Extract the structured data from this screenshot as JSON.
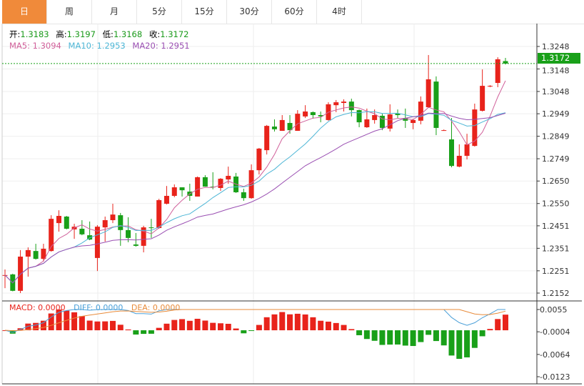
{
  "tabs": [
    {
      "label": "日",
      "active": true
    },
    {
      "label": "周"
    },
    {
      "label": "月"
    },
    {
      "label": "5分"
    },
    {
      "label": "15分"
    },
    {
      "label": "30分"
    },
    {
      "label": "60分"
    },
    {
      "label": "4时"
    }
  ],
  "ohlc_info": {
    "open_label": "开:",
    "open": "1.3183",
    "high_label": "高:",
    "high": "1.3197",
    "low_label": "低:",
    "low": "1.3168",
    "close_label": "收:",
    "close": "1.3172"
  },
  "ma_info": {
    "ma5": "MA5: 1.3094",
    "ma10": "MA10: 1.2953",
    "ma20": "MA20: 1.2951"
  },
  "macd_info": {
    "macd": "MACD: 0.0000",
    "diff": "DIFF: 0.0000",
    "dea": "DEA: 0.0000"
  },
  "colors": {
    "up": "#e8231b",
    "down": "#19a019",
    "ma5": "#d0609a",
    "ma10": "#4db6d6",
    "ma20": "#9a4fb2",
    "diff": "#4a9fd8",
    "dea": "#e88b3a",
    "tab_active": "#f08a3a"
  },
  "current_price_label": "1.3172",
  "chart_data": [
    {
      "type": "candlestick",
      "title": "",
      "ylim": [
        1.2152,
        1.3248
      ],
      "yticks": [
        "1.3248",
        "1.3148",
        "1.3048",
        "1.2949",
        "1.2849",
        "1.2749",
        "1.2650",
        "1.2550",
        "1.2451",
        "1.2351",
        "1.2251",
        "1.2152"
      ],
      "grid": true,
      "moving_averages": [
        5,
        10,
        20
      ],
      "ohlc": [
        [
          1.2229,
          1.2257,
          1.2174,
          1.2232
        ],
        [
          1.2235,
          1.2238,
          1.216,
          1.2162
        ],
        [
          1.2162,
          1.2343,
          1.2152,
          1.2314
        ],
        [
          1.2314,
          1.2355,
          1.2225,
          1.2343
        ],
        [
          1.2339,
          1.2371,
          1.2301,
          1.2304
        ],
        [
          1.2304,
          1.2371,
          1.2292,
          1.2349
        ],
        [
          1.2339,
          1.2498,
          1.2336,
          1.2482
        ],
        [
          1.2463,
          1.252,
          1.2425,
          1.2495
        ],
        [
          1.2492,
          1.2495,
          1.2435,
          1.2438
        ],
        [
          1.2435,
          1.246,
          1.2393,
          1.2447
        ],
        [
          1.2438,
          1.2476,
          1.2409,
          1.2413
        ],
        [
          1.2409,
          1.247,
          1.2387,
          1.239
        ],
        [
          1.2308,
          1.2454,
          1.225,
          1.2447
        ],
        [
          1.2444,
          1.2492,
          1.2381,
          1.2476
        ],
        [
          1.2476,
          1.2549,
          1.2463,
          1.2501
        ],
        [
          1.2498,
          1.2508,
          1.2362,
          1.2432
        ],
        [
          1.2432,
          1.2489,
          1.2378,
          1.2397
        ],
        [
          1.2368,
          1.2419,
          1.2358,
          1.2362
        ],
        [
          1.2362,
          1.2451,
          1.2333,
          1.2444
        ],
        [
          1.2444,
          1.2482,
          1.2397,
          1.2441
        ],
        [
          1.2441,
          1.2571,
          1.2438,
          1.2565
        ],
        [
          1.2549,
          1.2628,
          1.2546,
          1.2584
        ],
        [
          1.2584,
          1.2635,
          1.2578,
          1.2622
        ],
        [
          1.2622,
          1.2622,
          1.2581,
          1.2609
        ],
        [
          1.2603,
          1.2638,
          1.2562,
          1.2584
        ],
        [
          1.2581,
          1.267,
          1.2581,
          1.2667
        ],
        [
          1.2667,
          1.2676,
          1.2625,
          1.2625
        ],
        [
          1.2625,
          1.2689,
          1.2613,
          1.2622
        ],
        [
          1.2619,
          1.2663,
          1.2606,
          1.266
        ],
        [
          1.2657,
          1.2714,
          1.2638,
          1.2673
        ],
        [
          1.267,
          1.2686,
          1.2597,
          1.26
        ],
        [
          1.26,
          1.2616,
          1.2562,
          1.2574
        ],
        [
          1.2574,
          1.2724,
          1.2571,
          1.2698
        ],
        [
          1.2698,
          1.2797,
          1.2679,
          1.2794
        ],
        [
          1.2787,
          1.2899,
          1.2768,
          1.2895
        ],
        [
          1.2892,
          1.2924,
          1.287,
          1.288
        ],
        [
          1.2873,
          1.2943,
          1.2873,
          1.2921
        ],
        [
          1.2908,
          1.2943,
          1.286,
          1.2876
        ],
        [
          1.2873,
          1.2965,
          1.2873,
          1.2949
        ],
        [
          1.2937,
          1.2987,
          1.293,
          1.2959
        ],
        [
          1.2956,
          1.2959,
          1.2927,
          1.2943
        ],
        [
          1.2943,
          1.2959,
          1.2911,
          1.2937
        ],
        [
          1.2921,
          1.3,
          1.2918,
          1.2991
        ],
        [
          1.2987,
          1.301,
          1.2956,
          1.3
        ],
        [
          1.2997,
          1.3013,
          1.2959,
          1.3003
        ],
        [
          1.3003,
          1.3016,
          1.2937,
          1.2965
        ],
        [
          1.2965,
          1.2968,
          1.2889,
          1.2911
        ],
        [
          1.2889,
          1.2972,
          1.2886,
          1.2924
        ],
        [
          1.2921,
          1.2968,
          1.2905,
          1.2943
        ],
        [
          1.294,
          1.2949,
          1.2876,
          1.2886
        ],
        [
          1.2883,
          1.2991,
          1.287,
          1.2946
        ],
        [
          1.2949,
          1.2968,
          1.293,
          1.2943
        ],
        [
          1.293,
          1.2972,
          1.2886,
          1.2918
        ],
        [
          1.2908,
          1.2927,
          1.288,
          1.2921
        ],
        [
          1.2918,
          1.3026,
          1.2902,
          1.3003
        ],
        [
          1.2978,
          1.321,
          1.2975,
          1.3102
        ],
        [
          1.3092,
          1.3115,
          1.2854,
          1.2886
        ],
        [
          1.2876,
          1.2879,
          1.2873,
          1.2876
        ],
        [
          1.2835,
          1.293,
          1.2711,
          1.2717
        ],
        [
          1.2714,
          1.2813,
          1.2711,
          1.2762
        ],
        [
          1.2762,
          1.286,
          1.2746,
          1.2813
        ],
        [
          1.2806,
          1.2994,
          1.2803,
          1.2968
        ],
        [
          1.2962,
          1.3146,
          1.2959,
          1.3073
        ],
        [
          1.307,
          1.3076,
          1.3067,
          1.3073
        ],
        [
          1.3086,
          1.32,
          1.3067,
          1.3191
        ],
        [
          1.3183,
          1.3197,
          1.3168,
          1.3172
        ]
      ]
    },
    {
      "type": "macd",
      "ylim": [
        -0.0123,
        0.0055
      ],
      "yticks": [
        "0.0055",
        "-0.0004",
        "-0.0064",
        "-0.0123"
      ],
      "params": [
        12,
        26,
        9
      ]
    }
  ]
}
